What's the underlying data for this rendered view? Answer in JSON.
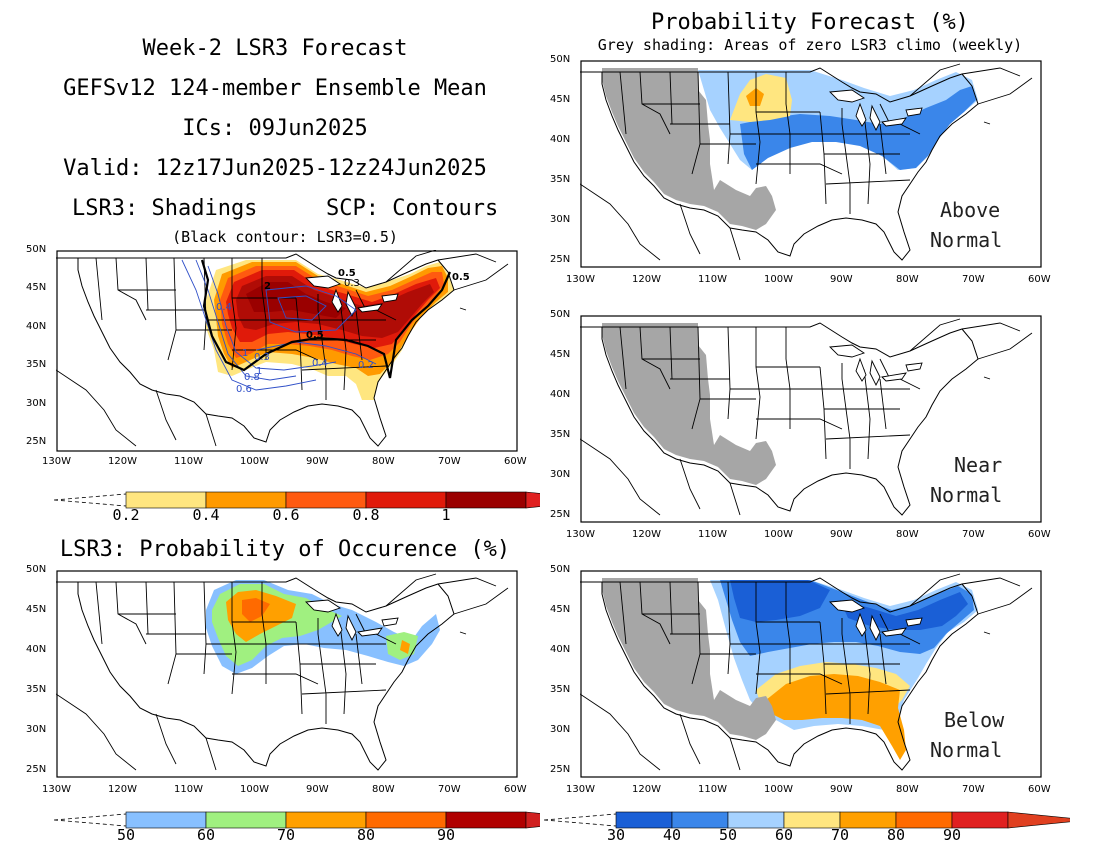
{
  "header": {
    "line1": "Week-2 LSR3 Forecast",
    "line2": "GEFSv12 124-member Ensemble Mean",
    "line3": "ICs: 09Jun2025",
    "line4": "Valid: 12z17Jun2025-12z24Jun2025",
    "line5a": "LSR3: Shadings",
    "line5b": "SCP: Contours",
    "line6": "(Black contour: LSR3=0.5)"
  },
  "right_header": {
    "title": "Probability Forecast (%)",
    "subtitle": "Grey shading: Areas of zero LSR3 climo (weekly)"
  },
  "occurrence_title": "LSR3: Probability of Occurence (%)",
  "map_axes": {
    "lat_labels": [
      "50N",
      "45N",
      "40N",
      "35N",
      "30N",
      "25N"
    ],
    "lon_labels": [
      "130W",
      "120W",
      "110W",
      "100W",
      "90W",
      "80W",
      "70W",
      "60W"
    ]
  },
  "panels": {
    "lsr3": {
      "contour_labels": [
        "2",
        "1",
        "0.5",
        "0.5",
        "0.5",
        "0.4",
        "0.4",
        "0.3",
        "0.3",
        "0.2",
        "0.8",
        "0.6",
        "1"
      ]
    },
    "above": {
      "line1": "Above",
      "line2": "Normal"
    },
    "near": {
      "line1": "Near",
      "line2": "Normal"
    },
    "below": {
      "line1": "Below",
      "line2": "Normal"
    }
  },
  "colorbars": {
    "lsr3": {
      "labels": [
        "0.2",
        "0.4",
        "0.6",
        "0.8",
        "1"
      ],
      "colors": [
        "#ffe680",
        "#ff9a00",
        "#ff5a10",
        "#e01a0a",
        "#9a0000",
        "#e02020"
      ]
    },
    "occurrence": {
      "labels": [
        "50",
        "60",
        "70",
        "80",
        "90"
      ],
      "colors": [
        "#88c0ff",
        "#a0f080",
        "#ffa000",
        "#ff6a00",
        "#b00000",
        "#d02020"
      ]
    },
    "probability": {
      "labels": [
        "30",
        "40",
        "50",
        "60",
        "70",
        "80",
        "90"
      ],
      "colors": [
        "#1a5fd6",
        "#3a86ea",
        "#a6d2ff",
        "#ffe680",
        "#ffa000",
        "#ff6a00",
        "#e02020",
        "#e04020"
      ]
    }
  },
  "palette": {
    "grey": "#a6a6a6",
    "contour_blue": "#3050c8",
    "land_line": "#000000"
  }
}
